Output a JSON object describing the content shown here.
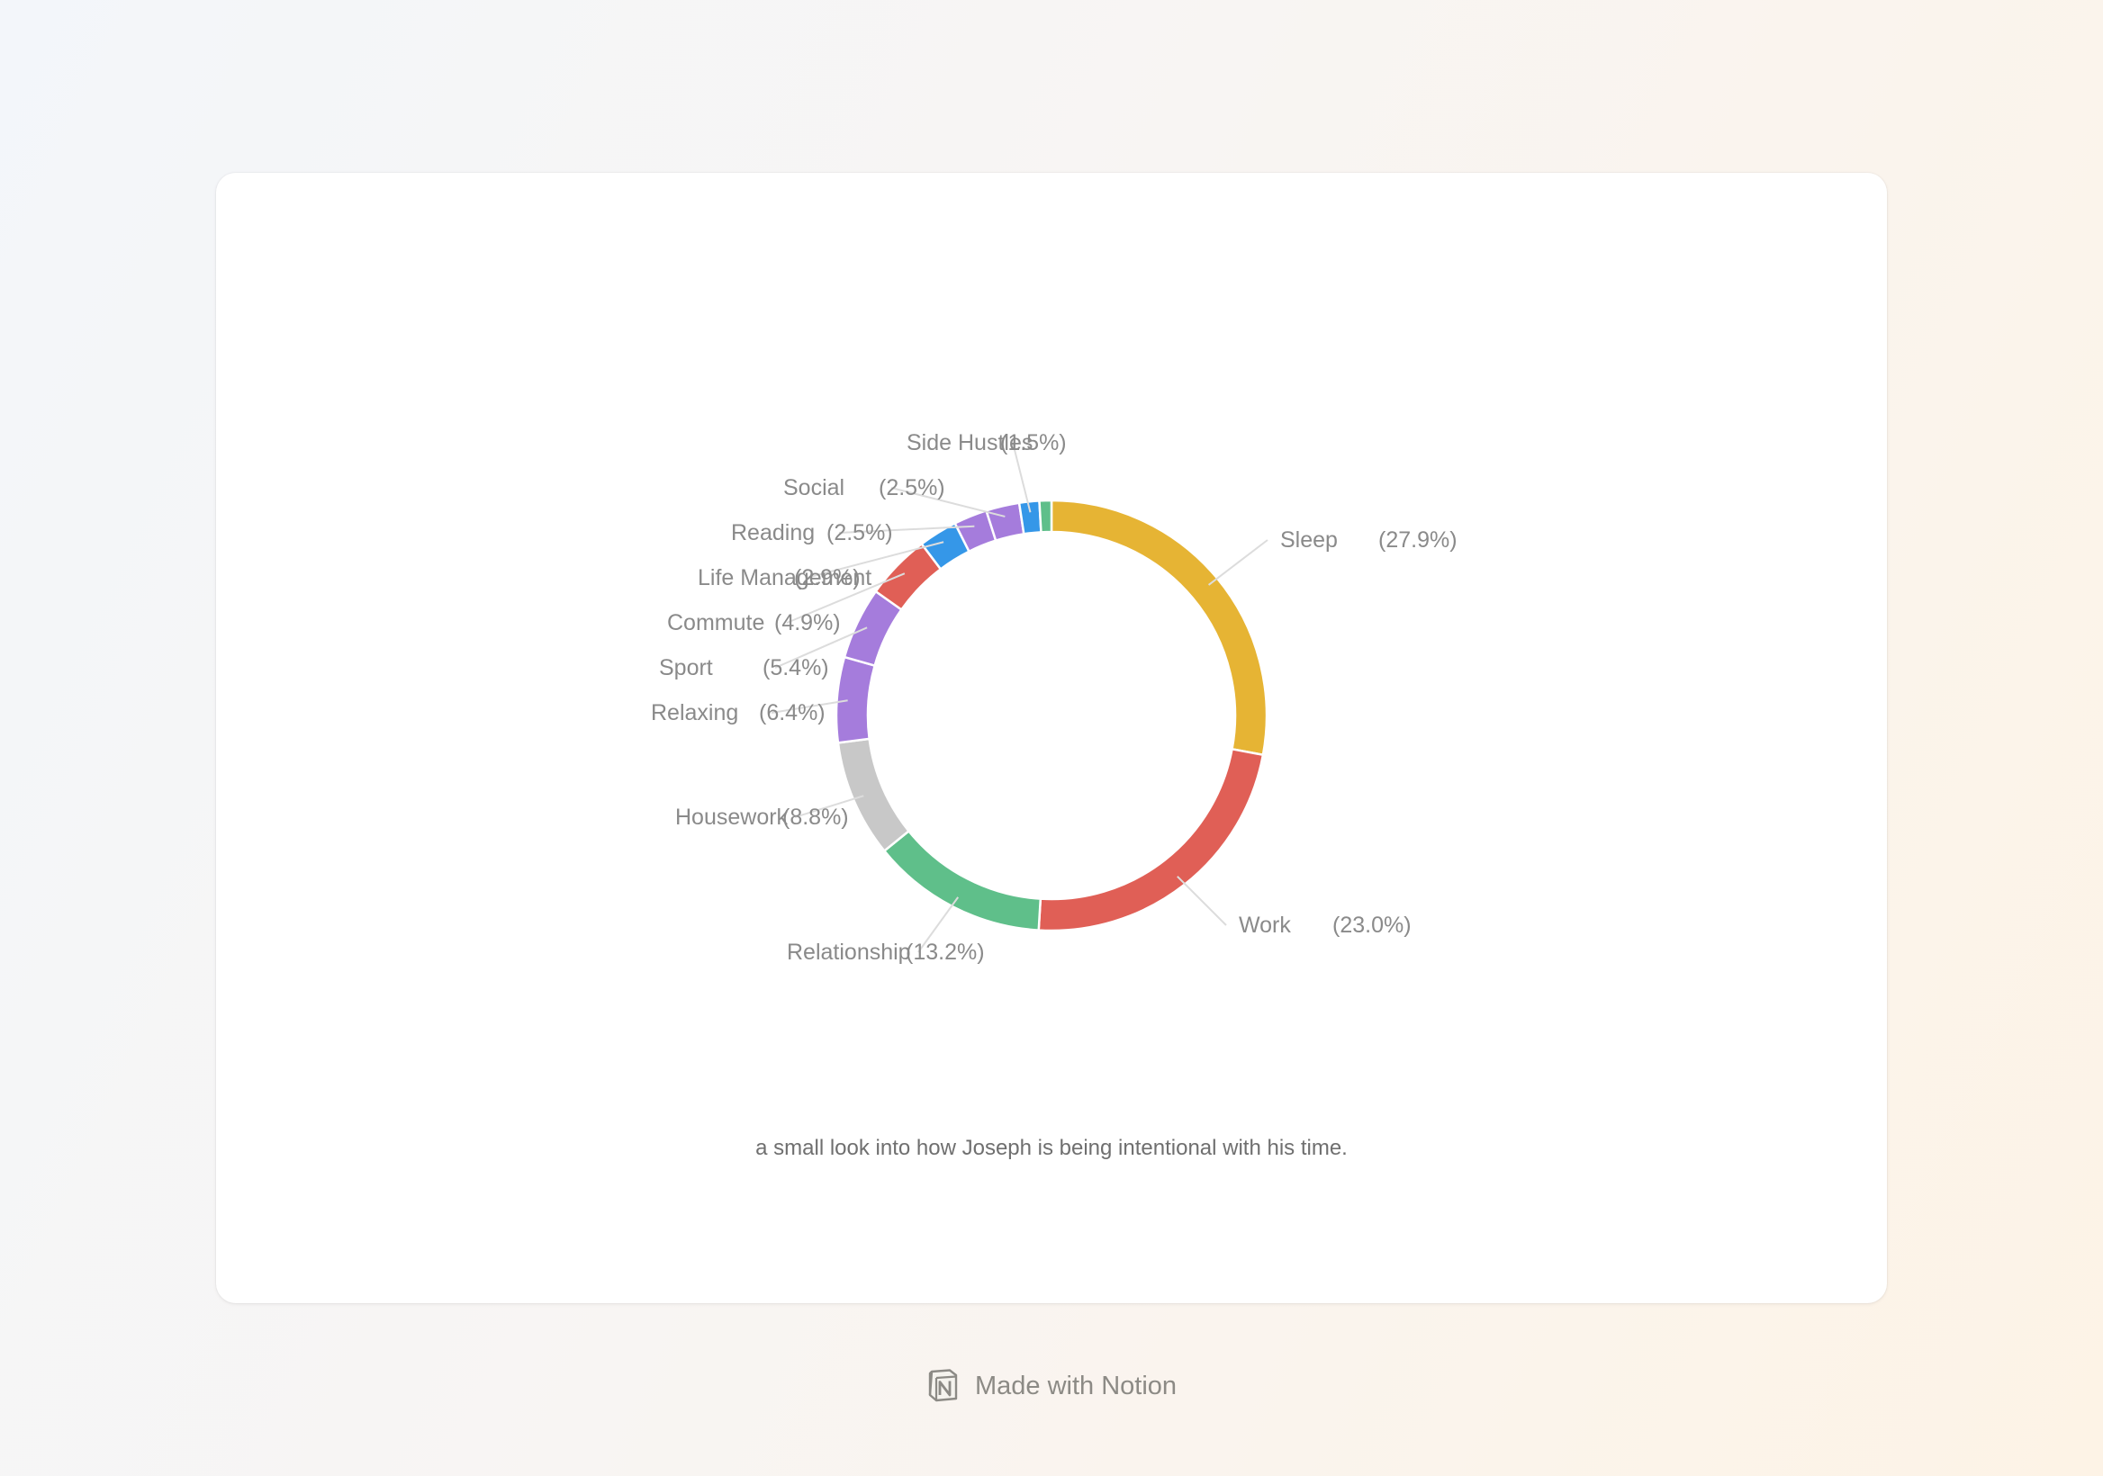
{
  "chart_data": {
    "type": "pie",
    "style": "donut",
    "slices": [
      {
        "label": "Sleep",
        "value": 27.9,
        "pct_text": "(27.9%)",
        "color": "#e6b434"
      },
      {
        "label": "Work",
        "value": 23.0,
        "pct_text": "(23.0%)",
        "color": "#e05f56"
      },
      {
        "label": "Relationship",
        "value": 13.2,
        "pct_text": "(13.2%)",
        "color": "#5fbf8a"
      },
      {
        "label": "Housework",
        "value": 8.8,
        "pct_text": "(8.8%)",
        "color": "#c8c8c8"
      },
      {
        "label": "Relaxing",
        "value": 6.4,
        "pct_text": "(6.4%)",
        "color": "#a57cdc"
      },
      {
        "label": "Sport",
        "value": 5.4,
        "pct_text": "(5.4%)",
        "color": "#a57cdc"
      },
      {
        "label": "Commute",
        "value": 4.9,
        "pct_text": "(4.9%)",
        "color": "#e05f56"
      },
      {
        "label": "Life Management",
        "value": 2.9,
        "pct_text": "(2.9%)",
        "color": "#3597e8"
      },
      {
        "label": "Reading",
        "value": 2.5,
        "pct_text": "(2.5%)",
        "color": "#a57cdc"
      },
      {
        "label": "Social",
        "value": 2.5,
        "pct_text": "(2.5%)",
        "color": "#a57cdc"
      },
      {
        "label": "Side Hustles",
        "value": 1.5,
        "pct_text": "(1.5%)",
        "color": "#3597e8"
      },
      {
        "label": "",
        "value": 0.9,
        "pct_text": "",
        "color": "#5fbf8a"
      }
    ]
  },
  "caption": "a small look into how Joseph is being intentional with his time.",
  "footer": {
    "text": "Made with Notion",
    "icon": "notion-logo-icon"
  }
}
